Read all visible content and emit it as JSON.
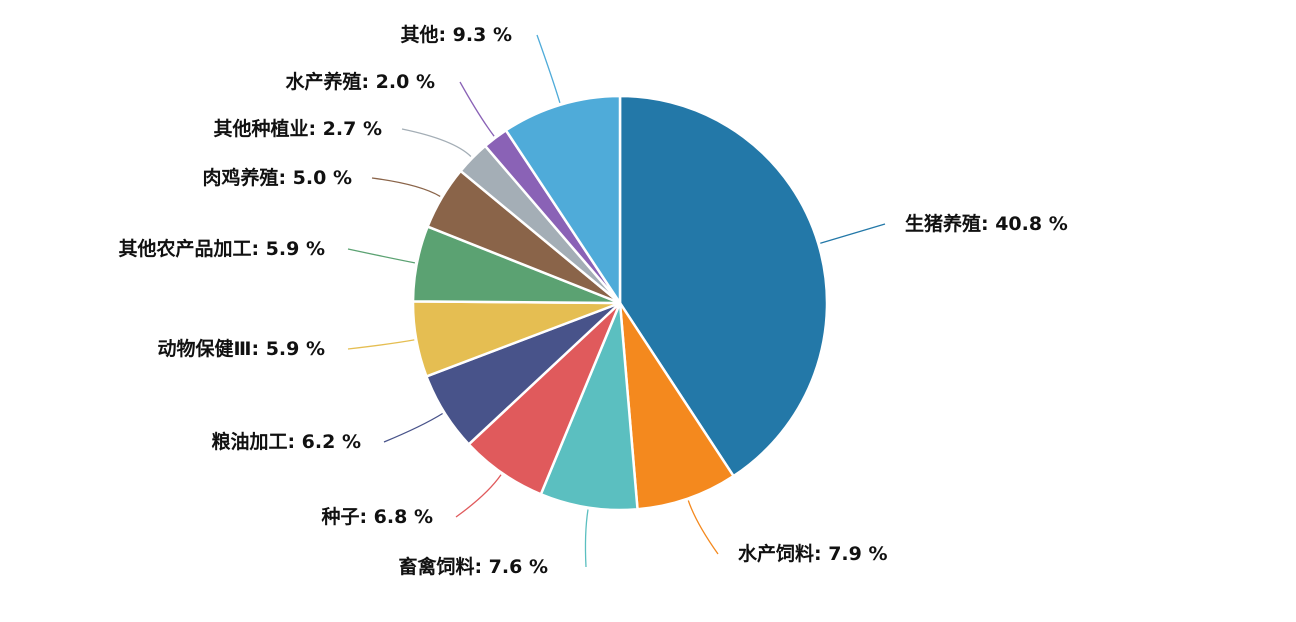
{
  "chart_data": {
    "type": "pie",
    "slices": [
      {
        "label": "生猪养殖",
        "value": 40.8,
        "display": "生猪养殖: 40.8 %",
        "color": "#2378a8"
      },
      {
        "label": "水产饲料",
        "value": 7.9,
        "display": "水产饲料: 7.9 %",
        "color": "#f4891e"
      },
      {
        "label": "畜禽饲料",
        "value": 7.6,
        "display": "畜禽饲料: 7.6 %",
        "color": "#5bbfc0"
      },
      {
        "label": "种子",
        "value": 6.8,
        "display": "种子: 6.8 %",
        "color": "#e05a5c"
      },
      {
        "label": "粮油加工",
        "value": 6.2,
        "display": "粮油加工: 6.2 %",
        "color": "#48538a"
      },
      {
        "label": "动物保健Ⅲ",
        "value": 5.9,
        "display": "动物保健Ⅲ: 5.9 %",
        "color": "#e5be52"
      },
      {
        "label": "其他农产品加工",
        "value": 5.9,
        "display": "其他农产品加工: 5.9 %",
        "color": "#5ba272"
      },
      {
        "label": "肉鸡养殖",
        "value": 5.0,
        "display": "肉鸡养殖: 5.0 %",
        "color": "#8a6449"
      },
      {
        "label": "其他种植业",
        "value": 2.7,
        "display": "其他种植业: 2.7 %",
        "color": "#a4aeb6"
      },
      {
        "label": "水产养殖",
        "value": 2.0,
        "display": "水产养殖: 2.0 %",
        "color": "#8a62b6"
      },
      {
        "label": "其他",
        "value": 9.3,
        "display": "其他: 9.3 %",
        "color": "#4fabd9"
      }
    ]
  }
}
